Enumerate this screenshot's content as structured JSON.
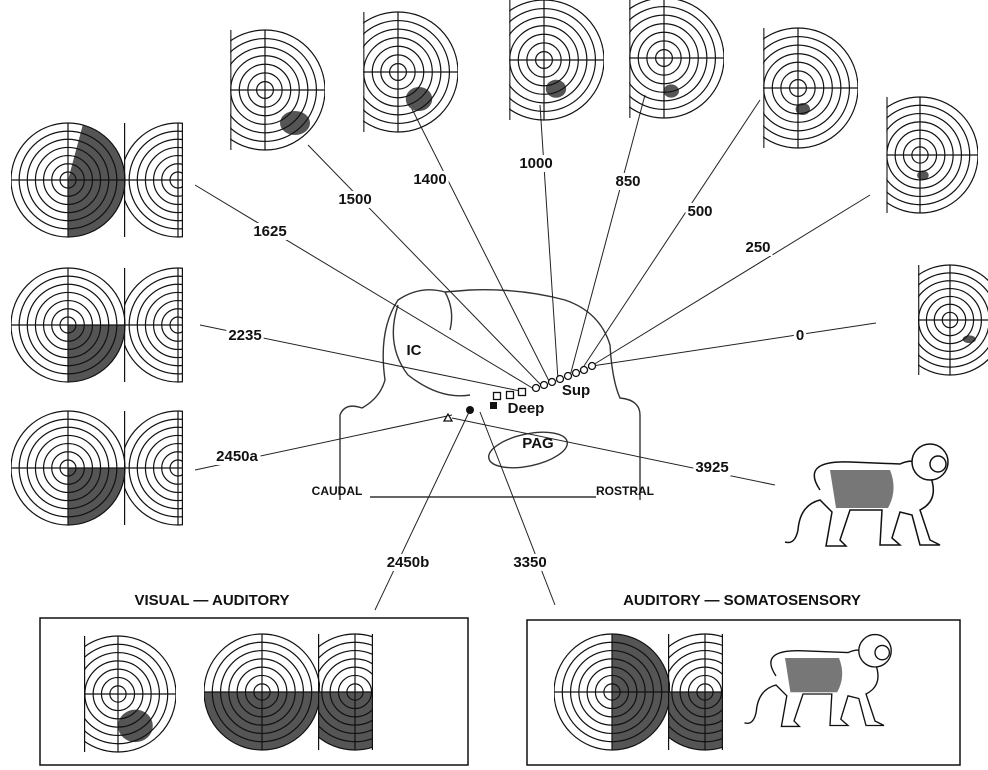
{
  "structures": {
    "ic": "IC",
    "sup": "Sup",
    "deep": "Deep",
    "pag": "PAG",
    "caudal": "CAUDAL",
    "rostral": "ROSTRAL"
  },
  "recordings": [
    {
      "depth": "0"
    },
    {
      "depth": "250"
    },
    {
      "depth": "500"
    },
    {
      "depth": "850"
    },
    {
      "depth": "1000"
    },
    {
      "depth": "1400"
    },
    {
      "depth": "1500"
    },
    {
      "depth": "1625"
    },
    {
      "depth": "2235"
    },
    {
      "depth": "2450a"
    },
    {
      "depth": "3925"
    },
    {
      "depth": "2450b"
    },
    {
      "depth": "3350"
    }
  ],
  "panels": [
    {
      "title": "VISUAL — AUDITORY"
    },
    {
      "title": "AUDITORY — SOMATOSENSORY"
    }
  ]
}
